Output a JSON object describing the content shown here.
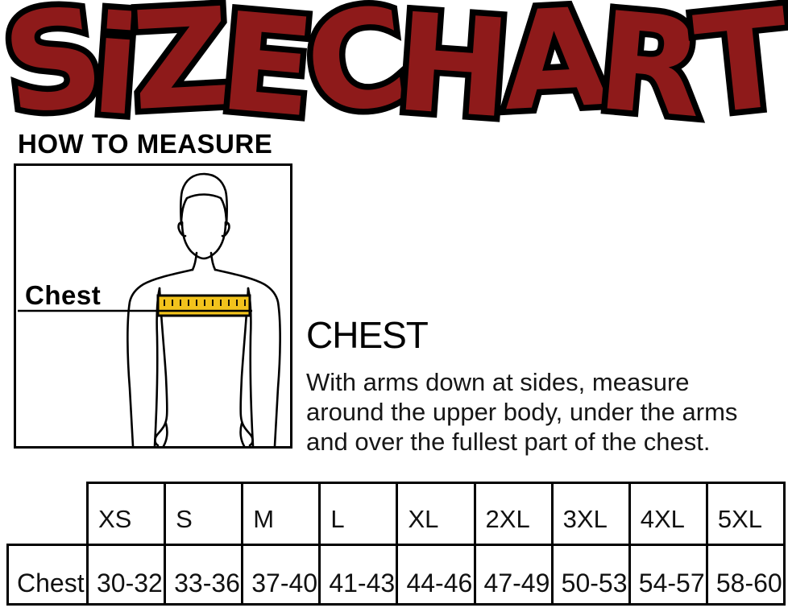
{
  "title": {
    "word1": "SiZE",
    "word2": "CHART",
    "color": "#8e1a1a",
    "outline_color": "#000000"
  },
  "how_to_measure_heading": "HOW TO MEASURE",
  "figure": {
    "label": "Chest",
    "tape_color": "#f2c31c"
  },
  "instructions": {
    "heading": "CHEST",
    "lines": [
      "With arms down at sides, measure",
      "around the upper body, under the arms",
      "and over the fullest part of the chest."
    ]
  },
  "size_table": {
    "row_label": "Chest",
    "sizes": [
      "XS",
      "S",
      "M",
      "L",
      "XL",
      "2XL",
      "3XL",
      "4XL",
      "5XL"
    ],
    "chest_values": [
      "30-32",
      "33-36",
      "37-40",
      "41-43",
      "44-46",
      "47-49",
      "50-53",
      "54-57",
      "58-60"
    ]
  }
}
